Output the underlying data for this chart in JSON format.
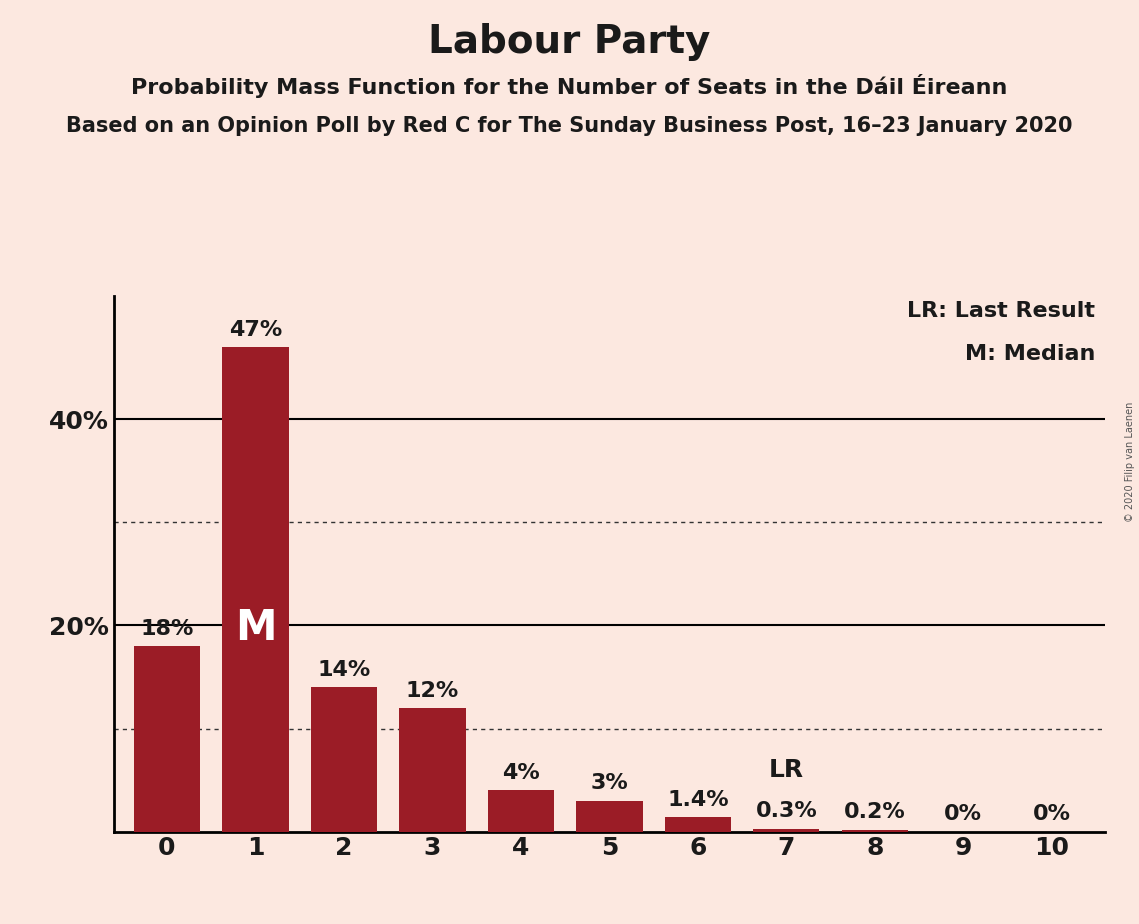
{
  "title": "Labour Party",
  "subtitle1": "Probability Mass Function for the Number of Seats in the Dáil Éireann",
  "subtitle2": "Based on an Opinion Poll by Red C for The Sunday Business Post, 16–23 January 2020",
  "copyright": "© 2020 Filip van Laenen",
  "categories": [
    0,
    1,
    2,
    3,
    4,
    5,
    6,
    7,
    8,
    9,
    10
  ],
  "values": [
    18,
    47,
    14,
    12,
    4,
    3,
    1.4,
    0.3,
    0.2,
    0,
    0
  ],
  "labels": [
    "18%",
    "47%",
    "14%",
    "12%",
    "4%",
    "3%",
    "1.4%",
    "0.3%",
    "0.2%",
    "0%",
    "0%"
  ],
  "bar_color": "#9b1c26",
  "background_color": "#fce8e0",
  "median_bar": 1,
  "median_label": "M",
  "lr_bar": 7,
  "lr_label": "LR",
  "solid_gridlines": [
    20,
    40
  ],
  "dotted_gridlines": [
    10,
    30
  ],
  "ylim": [
    0,
    52
  ],
  "ylabel_ticks": [
    20,
    40
  ],
  "ylabel_labels": [
    "20%",
    "40%"
  ],
  "title_fontsize": 28,
  "subtitle1_fontsize": 16,
  "subtitle2_fontsize": 15,
  "label_fontsize": 16,
  "tick_fontsize": 18,
  "legend_fontsize": 16,
  "median_fontsize": 30,
  "lr_fontsize": 18
}
